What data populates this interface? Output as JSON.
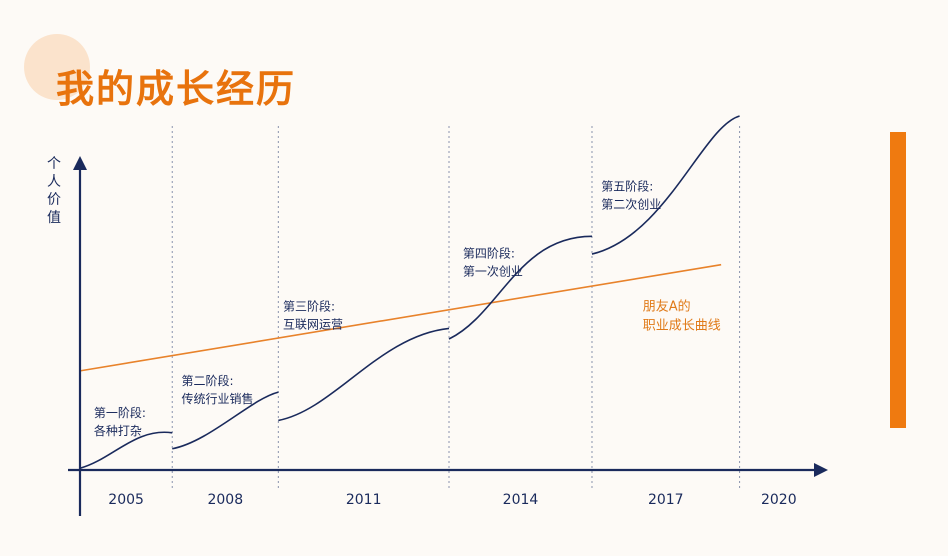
{
  "title": "我的成长经历",
  "colors": {
    "title": "#e8730d",
    "axis": "#1a2a5c",
    "curve": "#1a2a5c",
    "friend_line": "#e8822a",
    "accent_bar": "#ef7a10",
    "deco_circle": "#fbe3cc"
  },
  "chart_data": {
    "type": "line",
    "ylabel": "个人价值",
    "xlabel": "",
    "x_ticks": [
      "2005",
      "2008",
      "2011",
      "2014",
      "2017",
      "2020"
    ],
    "xlim": [
      2004.5,
      2020.5
    ],
    "ylim": [
      0,
      100
    ],
    "grid": "vertical dashed lines at stage boundaries",
    "stage_boundaries": [
      2006.5,
      2008.8,
      2012.5,
      2015.6,
      2018.8
    ],
    "stages": [
      {
        "line1": "第一阶段:",
        "line2": "各种打杂",
        "x": 2004.8,
        "y": 15
      },
      {
        "line1": "第二阶段:",
        "line2": "传统行业销售",
        "x": 2006.7,
        "y": 24
      },
      {
        "line1": "第三阶段:",
        "line2": "互联网运营",
        "x": 2008.9,
        "y": 45
      },
      {
        "line1": "第四阶段:",
        "line2": "第一次创业",
        "x": 2012.8,
        "y": 60
      },
      {
        "line1": "第五阶段:",
        "line2": "第二次创业",
        "x": 2015.8,
        "y": 79
      }
    ],
    "series": [
      {
        "segments": [
          [
            [
              2004.5,
              0.5
            ],
            [
              2005.2,
              3
            ],
            [
              2005.7,
              12
            ],
            [
              2006.5,
              10.5
            ]
          ],
          [
            [
              2006.5,
              6
            ],
            [
              2007.3,
              8
            ],
            [
              2008.2,
              20
            ],
            [
              2008.8,
              22
            ]
          ],
          [
            [
              2008.8,
              14
            ],
            [
              2010.0,
              17
            ],
            [
              2011.0,
              38
            ],
            [
              2012.5,
              40
            ]
          ],
          [
            [
              2012.5,
              37
            ],
            [
              2013.6,
              44
            ],
            [
              2014.0,
              66
            ],
            [
              2015.6,
              66
            ]
          ],
          [
            [
              2015.6,
              61
            ],
            [
              2017.2,
              66
            ],
            [
              2018.0,
              97
            ],
            [
              2018.8,
              100
            ]
          ]
        ]
      },
      {
        "label_line1": "朋友A的",
        "label_line2": "职业成长曲线",
        "label_x": 2016.7,
        "label_y": 45,
        "points": [
          [
            2004.5,
            28
          ],
          [
            2018.4,
            58
          ]
        ]
      }
    ]
  }
}
